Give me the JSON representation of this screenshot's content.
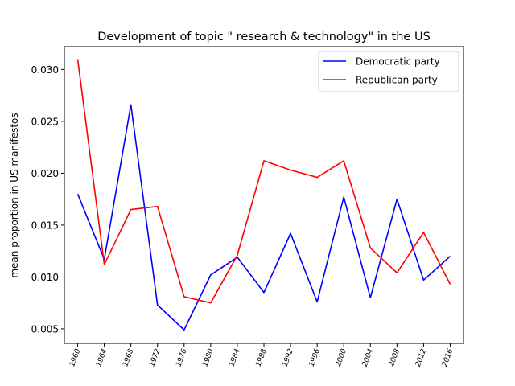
{
  "chart_data": {
    "type": "line",
    "title": "Development of topic \" research & technology\" in the US",
    "xlabel": "",
    "ylabel": "mean proportion in US manifestos",
    "x": [
      1960,
      1964,
      1968,
      1972,
      1976,
      1980,
      1984,
      1988,
      1992,
      1996,
      2000,
      2004,
      2008,
      2012,
      2016
    ],
    "x_tick_labels": [
      "1960",
      "1964",
      "1968",
      "1972",
      "1976",
      "1980",
      "1984",
      "1988",
      "1992",
      "1996",
      "2000",
      "2004",
      "2008",
      "2012",
      "2016"
    ],
    "y_ticks": [
      0.005,
      0.01,
      0.015,
      0.02,
      0.025,
      0.03
    ],
    "y_tick_labels": [
      "0.005",
      "0.010",
      "0.015",
      "0.020",
      "0.025",
      "0.030"
    ],
    "ylim": [
      0.0036,
      0.0322
    ],
    "xlim": [
      1958,
      2018
    ],
    "grid": false,
    "legend_position": "top-right",
    "series": [
      {
        "name": "Democratic party",
        "color": "#0000ff",
        "values": [
          0.018,
          0.0117,
          0.0266,
          0.0073,
          0.0049,
          0.0102,
          0.0119,
          0.0085,
          0.0142,
          0.0076,
          0.0177,
          0.008,
          0.0175,
          0.0097,
          0.012
        ]
      },
      {
        "name": "Republican party",
        "color": "#ff0000",
        "values": [
          0.031,
          0.0112,
          0.0165,
          0.0168,
          0.0081,
          0.0075,
          0.0121,
          0.0212,
          0.0203,
          0.0196,
          0.0212,
          0.0128,
          0.0104,
          0.0143,
          0.0093
        ]
      }
    ]
  }
}
